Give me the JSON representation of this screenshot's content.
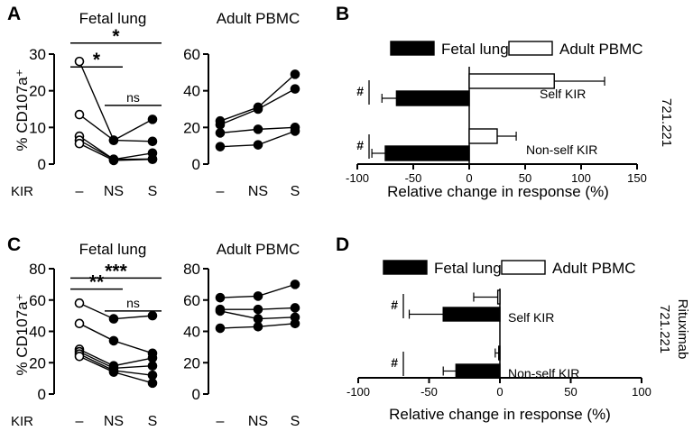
{
  "chart_data": [
    {
      "panel": "A",
      "type": "line",
      "title": "Fetal lung",
      "ylabel": "% CD107a⁺",
      "row_label": "KIR",
      "categories": [
        "–",
        "NS",
        "S"
      ],
      "ylim": [
        0,
        30
      ],
      "yticks": [
        0,
        10,
        20,
        30
      ],
      "series": [
        {
          "values": [
            28,
            6.5,
            12.2
          ]
        },
        {
          "values": [
            13.5,
            6.5,
            6.2
          ]
        },
        {
          "values": [
            7.6,
            1.3,
            3.0
          ]
        },
        {
          "values": [
            6.5,
            1.3,
            1.4
          ]
        },
        {
          "values": [
            5.6,
            1.0,
            1.3
          ]
        }
      ],
      "annotations": [
        {
          "label": "*",
          "from": 0,
          "to": 2,
          "y": 33
        },
        {
          "label": "*",
          "from": 0,
          "to": 1,
          "y": 26.5
        },
        {
          "label": "ns",
          "from": 1,
          "to": 2,
          "y": 16
        }
      ]
    },
    {
      "panel": "A2",
      "type": "line",
      "title": "Adult PBMC",
      "categories": [
        "–",
        "NS",
        "S"
      ],
      "ylim": [
        0,
        60
      ],
      "yticks": [
        0,
        20,
        40,
        60
      ],
      "series": [
        {
          "values": [
            23.5,
            31,
            49
          ]
        },
        {
          "values": [
            21.5,
            30,
            41
          ]
        },
        {
          "values": [
            17,
            19,
            20
          ]
        },
        {
          "values": [
            9.5,
            10.5,
            18
          ]
        }
      ]
    },
    {
      "panel": "B",
      "type": "bar",
      "orientation": "horizontal",
      "xlabel": "Relative change in response (%)",
      "xlim": [
        -100,
        150
      ],
      "xticks": [
        -100,
        -50,
        0,
        50,
        100,
        150
      ],
      "legend": [
        "Fetal lung",
        "Adult PBMC"
      ],
      "side_label": "721.221",
      "categories": [
        "Self KIR",
        "Non-self KIR"
      ],
      "series": [
        {
          "name": "Fetal lung",
          "values": [
            -65,
            -75
          ],
          "errors": [
            13,
            12
          ]
        },
        {
          "name": "Adult PBMC",
          "values": [
            76,
            25
          ],
          "errors": [
            45,
            17
          ]
        }
      ],
      "markers": [
        "#",
        "#"
      ]
    },
    {
      "panel": "C",
      "type": "line",
      "title": "Fetal lung",
      "ylabel": "% CD107a⁺",
      "row_label": "KIR",
      "categories": [
        "–",
        "NS",
        "S"
      ],
      "ylim": [
        0,
        80
      ],
      "yticks": [
        0,
        20,
        40,
        60,
        80
      ],
      "series": [
        {
          "values": [
            58,
            48,
            50
          ]
        },
        {
          "values": [
            45,
            34,
            26
          ]
        },
        {
          "values": [
            28.5,
            18,
            23
          ]
        },
        {
          "values": [
            27,
            16.5,
            18
          ]
        },
        {
          "values": [
            25.5,
            15,
            12
          ]
        },
        {
          "values": [
            24,
            14,
            7
          ]
        }
      ],
      "annotations": [
        {
          "label": "***",
          "from": 0,
          "to": 2,
          "y": 74
        },
        {
          "label": "**",
          "from": 0,
          "to": 1,
          "y": 67
        },
        {
          "label": "ns",
          "from": 1,
          "to": 2,
          "y": 53
        }
      ]
    },
    {
      "panel": "C2",
      "type": "line",
      "title": "Adult PBMC",
      "categories": [
        "–",
        "NS",
        "S"
      ],
      "ylim": [
        0,
        80
      ],
      "yticks": [
        0,
        20,
        40,
        60,
        80
      ],
      "series": [
        {
          "values": [
            61.5,
            62.5,
            70
          ]
        },
        {
          "values": [
            54,
            54,
            55
          ]
        },
        {
          "values": [
            53,
            48,
            49
          ]
        },
        {
          "values": [
            42,
            43,
            45
          ]
        }
      ]
    },
    {
      "panel": "D",
      "type": "bar",
      "orientation": "horizontal",
      "xlabel": "Relative change in response (%)",
      "xlim": [
        -100,
        100
      ],
      "xticks": [
        -100,
        -50,
        0,
        50,
        100
      ],
      "legend": [
        "Fetal lung",
        "Adult PBMC"
      ],
      "side_label": "721.221",
      "side_label2": "Rituximab",
      "categories": [
        "Self KIR",
        "Non-self KIR"
      ],
      "series": [
        {
          "name": "Fetal lung",
          "values": [
            -40,
            -31
          ],
          "errors": [
            24,
            9
          ]
        },
        {
          "name": "Adult PBMC",
          "values": [
            -1.5,
            -0.8
          ],
          "errors": [
            17,
            2.5
          ]
        }
      ],
      "markers": [
        "#",
        "#"
      ]
    }
  ]
}
